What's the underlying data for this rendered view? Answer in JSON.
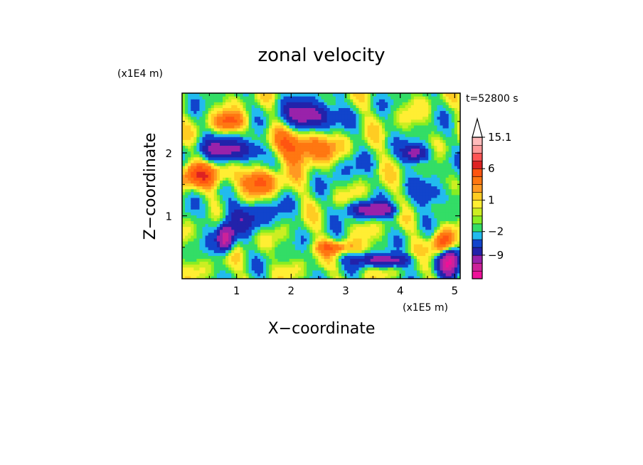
{
  "chart_data": {
    "type": "heatmap",
    "title": "zonal velocity",
    "xlabel": "X−coordinate",
    "ylabel": "Z−coordinate",
    "x_scale_label": "(x1E5 m)",
    "y_scale_label": "(x1E4 m)",
    "time_label": "t=52800 s",
    "xlim": [
      0,
      5.1
    ],
    "ylim": [
      0,
      2.95
    ],
    "x_ticks": [
      {
        "value": 1,
        "label": "1"
      },
      {
        "value": 2,
        "label": "2"
      },
      {
        "value": 3,
        "label": "3"
      },
      {
        "value": 4,
        "label": "4"
      },
      {
        "value": 5,
        "label": "5"
      }
    ],
    "y_ticks": [
      {
        "value": 1,
        "label": "1"
      },
      {
        "value": 2,
        "label": "2"
      }
    ],
    "colorbar": {
      "bottom_to_top_colors": [
        "#ee1199",
        "#cc2299",
        "#9922aa",
        "#2222aa",
        "#1144cc",
        "#22bbee",
        "#33dd66",
        "#88ee22",
        "#ccee22",
        "#ffee33",
        "#ffcc22",
        "#ff9922",
        "#ff7711",
        "#ff5511",
        "#dd2222",
        "#ff5555",
        "#ff9999",
        "#ffbbbb"
      ],
      "labels": [
        {
          "value": -9,
          "text": "−9"
        },
        {
          "value": -2,
          "text": "−2"
        },
        {
          "value": 1,
          "text": "1"
        },
        {
          "value": 6,
          "text": "6"
        },
        {
          "value": 15.1,
          "text": "15.1"
        }
      ],
      "extend": "max"
    },
    "field_features": [
      {
        "x": 0.95,
        "z": 2.05,
        "value": -8,
        "rx": 0.55,
        "rz": 0.18
      },
      {
        "x": 2.35,
        "z": 2.6,
        "value": -9,
        "rx": 0.45,
        "rz": 0.22
      },
      {
        "x": 3.5,
        "z": 1.1,
        "value": -8,
        "rx": 0.45,
        "rz": 0.12
      },
      {
        "x": 4.3,
        "z": 2.0,
        "value": -8,
        "rx": 0.25,
        "rz": 0.15
      },
      {
        "x": 0.8,
        "z": 0.65,
        "value": -12,
        "rx": 0.15,
        "rz": 0.2
      },
      {
        "x": 4.9,
        "z": 0.3,
        "value": -12,
        "rx": 0.18,
        "rz": 0.25
      },
      {
        "x": 3.7,
        "z": 0.3,
        "value": -8,
        "rx": 0.5,
        "rz": 0.1
      },
      {
        "x": 0.3,
        "z": 1.65,
        "value": 6,
        "rx": 0.5,
        "rz": 0.2
      },
      {
        "x": 2.2,
        "z": 2.1,
        "value": 7,
        "rx": 0.6,
        "rz": 0.25
      },
      {
        "x": 1.4,
        "z": 1.55,
        "value": 6,
        "rx": 0.4,
        "rz": 0.2
      },
      {
        "x": 4.8,
        "z": 0.55,
        "value": 9,
        "rx": 0.2,
        "rz": 0.2
      },
      {
        "x": 0.9,
        "z": 2.5,
        "value": 6,
        "rx": 0.3,
        "rz": 0.15
      },
      {
        "x": 2.8,
        "z": 0.5,
        "value": 5,
        "rx": 0.4,
        "rz": 0.1
      },
      {
        "x": 1.2,
        "z": 1.0,
        "value": -4,
        "rx": 0.6,
        "rz": 0.25
      },
      {
        "x": 4.6,
        "z": 1.35,
        "value": -4,
        "rx": 0.35,
        "rz": 0.2
      },
      {
        "x": 3.0,
        "z": 1.8,
        "value": -2,
        "rx": 0.3,
        "rz": 0.3
      }
    ]
  }
}
